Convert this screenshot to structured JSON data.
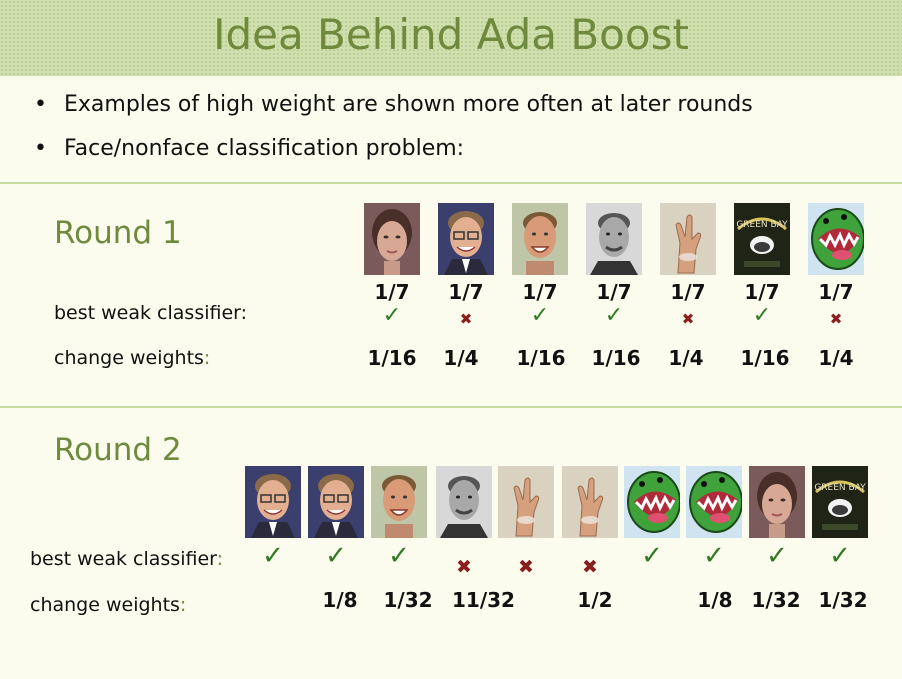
{
  "title": "Idea Behind Ada Boost",
  "bullets": [
    "Examples of high weight are shown more often at later rounds",
    "Face/nonface classification problem:"
  ],
  "round1": {
    "label": "Round 1",
    "images": [
      "woman-face-icon",
      "bill-gates-icon",
      "brett-favre-icon",
      "gray-man-icon",
      "hand-icon",
      "packers-logo-icon",
      "green-monster-icon"
    ],
    "weights": [
      "1/7",
      "1/7",
      "1/7",
      "1/7",
      "1/7",
      "1/7",
      "1/7"
    ],
    "classifier_label": "best weak classifier:",
    "marks": [
      "check",
      "cross",
      "check",
      "check",
      "cross",
      "check",
      "cross"
    ],
    "change_label": "change weights",
    "change_colon": ":",
    "new_weights": [
      "1/16",
      "1/4",
      "1/16",
      "1/16",
      "1/4",
      "1/16",
      "1/4"
    ]
  },
  "round2": {
    "label": "Round 2",
    "images": [
      "bill-gates-icon",
      "bill-gates-icon",
      "brett-favre-icon",
      "gray-man-icon",
      "hand-icon",
      "hand-icon",
      "green-monster-icon",
      "green-monster-icon",
      "woman-face-icon",
      "packers-logo-icon"
    ],
    "classifier_label": "best weak classifier",
    "classifier_colon": ":",
    "marks": [
      "check",
      "check",
      "check",
      "cross",
      "cross",
      "cross",
      "check",
      "check",
      "check",
      "check"
    ],
    "change_label": "change weights",
    "change_colon": ":",
    "new_weights": [
      "1/8",
      "1/32",
      "11/32",
      "1/2",
      "1/8",
      "1/32",
      "1/32"
    ]
  },
  "glyphs": {
    "check": "✓",
    "cross": "✖"
  },
  "colors": {
    "accent": "#6f8a3c",
    "check": "#2f7a22",
    "cross": "#8b1d1d"
  }
}
